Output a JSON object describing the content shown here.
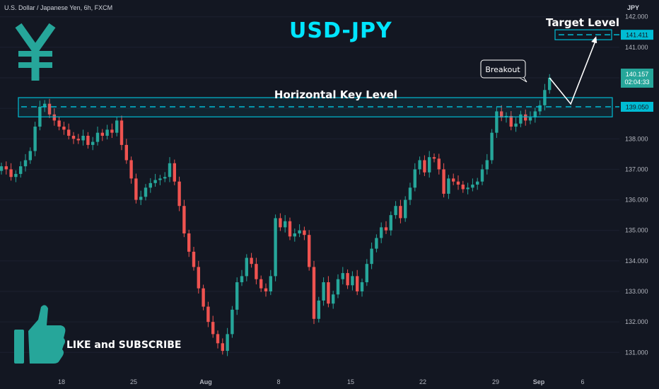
{
  "header": {
    "symbol": "U.S. Dollar / Japanese Yen, 6h, FXCM",
    "currency": "JPY"
  },
  "overlay": {
    "title": "USD-JPY",
    "key_level_label": "Horizontal Key Level",
    "target_label": "Target Level",
    "breakout_label": "Breakout",
    "cta_label": "LIKE and SUBSCRIBE",
    "icons": [
      "yen-icon",
      "thumbs-up-icon"
    ]
  },
  "colors": {
    "background": "#131722",
    "up": "#26a69a",
    "down": "#ef5350",
    "accent": "#00bcd4",
    "title": "#00e5ff",
    "icon": "#26a69a"
  },
  "chart_data": {
    "type": "candlestick",
    "x_tick_labels": [
      "18",
      "25",
      "Aug",
      "8",
      "15",
      "22",
      "29",
      "Sep",
      "6"
    ],
    "y_ticks": [
      131,
      132,
      133,
      134,
      135,
      136,
      137,
      138,
      139,
      140,
      141,
      142
    ],
    "ylim": [
      130.45,
      142.55
    ],
    "closes": [
      137.1,
      137.0,
      136.75,
      136.85,
      137.1,
      137.3,
      137.6,
      138.4,
      139.05,
      139.15,
      138.8,
      138.6,
      138.4,
      138.3,
      138.1,
      138.0,
      137.95,
      138.1,
      137.8,
      137.9,
      138.2,
      138.1,
      138.3,
      138.2,
      138.6,
      137.8,
      137.3,
      136.7,
      136.0,
      136.1,
      136.4,
      136.55,
      136.65,
      136.7,
      136.75,
      137.2,
      136.6,
      135.8,
      134.9,
      134.3,
      133.8,
      133.1,
      132.5,
      132.0,
      131.6,
      131.3,
      131.05,
      131.6,
      132.4,
      133.3,
      133.5,
      134.1,
      133.9,
      133.4,
      133.1,
      133.0,
      133.5,
      135.4,
      135.1,
      135.3,
      134.8,
      134.9,
      135.0,
      134.85,
      133.8,
      132.1,
      132.7,
      133.3,
      132.6,
      132.9,
      133.4,
      133.6,
      133.2,
      133.5,
      133.0,
      133.3,
      133.9,
      134.4,
      134.75,
      135.1,
      135.0,
      135.5,
      135.8,
      135.4,
      136.0,
      136.4,
      137.0,
      137.3,
      136.9,
      137.4,
      137.35,
      137.0,
      136.2,
      136.7,
      136.6,
      136.5,
      136.35,
      136.4,
      136.5,
      136.6,
      137.0,
      137.3,
      138.2,
      138.9,
      138.7,
      138.75,
      138.4,
      138.5,
      138.8,
      138.6,
      138.7,
      138.9,
      139.1,
      139.6,
      140.0
    ],
    "last_price": "140.157",
    "countdown": "02:04:33",
    "key_level": "139.050",
    "target_level": "141.411",
    "key_level_value": 139.05,
    "target_level_value": 141.411
  }
}
